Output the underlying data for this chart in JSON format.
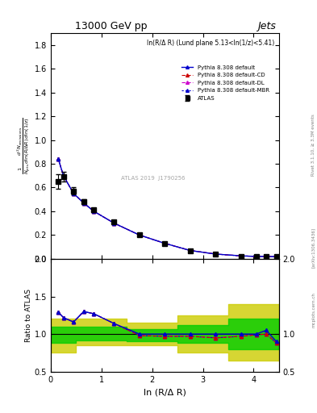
{
  "title": "13000 GeV pp",
  "title_right": "Jets",
  "panel_label": "ln(R/Δ R) (Lund plane 5.13<ln(1/z)<5.41)",
  "xlabel": "ln (R/Δ R)",
  "ylabel": "1/N_jets dln(R/Δ R) dln(1/z)\nd² N_emissions",
  "ylabel_ratio": "Ratio to ATLAS",
  "watermark": "ATLAS 2019  J1790256",
  "right_label": "Rivet 3.1.10, ≥ 3.3M events",
  "arxiv_label": "[arXiv:1306.3436]",
  "mcplots_label": "mcplots.cern.ch",
  "atlas_x": [
    0.15,
    0.25,
    0.45,
    0.65,
    0.85,
    1.25,
    1.75,
    2.25,
    2.75,
    3.25,
    3.75,
    4.05,
    4.25,
    4.45
  ],
  "atlas_y": [
    0.65,
    0.69,
    0.57,
    0.48,
    0.41,
    0.31,
    0.2,
    0.13,
    0.07,
    0.04,
    0.02,
    0.02,
    0.02,
    0.02
  ],
  "atlas_yerr": [
    0.06,
    0.04,
    0.03,
    0.02,
    0.02,
    0.015,
    0.01,
    0.008,
    0.005,
    0.003,
    0.002,
    0.002,
    0.002,
    0.002
  ],
  "pythia_x": [
    0.15,
    0.25,
    0.45,
    0.65,
    0.85,
    1.25,
    1.75,
    2.25,
    2.75,
    3.25,
    3.75,
    4.05,
    4.25,
    4.45
  ],
  "pythia_default_y": [
    0.84,
    0.7,
    0.55,
    0.47,
    0.4,
    0.3,
    0.2,
    0.13,
    0.07,
    0.04,
    0.025,
    0.02,
    0.02,
    0.018
  ],
  "pythia_CD_y": [
    0.84,
    0.7,
    0.55,
    0.47,
    0.4,
    0.3,
    0.2,
    0.13,
    0.07,
    0.04,
    0.025,
    0.02,
    0.02,
    0.018
  ],
  "pythia_DL_y": [
    0.84,
    0.7,
    0.55,
    0.47,
    0.4,
    0.3,
    0.2,
    0.13,
    0.07,
    0.04,
    0.025,
    0.02,
    0.02,
    0.018
  ],
  "pythia_MBR_y": [
    0.84,
    0.7,
    0.55,
    0.47,
    0.4,
    0.3,
    0.2,
    0.13,
    0.07,
    0.04,
    0.025,
    0.02,
    0.02,
    0.018
  ],
  "ratio_default_y": [
    1.29,
    1.22,
    1.16,
    1.3,
    1.27,
    1.14,
    1.0,
    1.0,
    1.0,
    1.0,
    1.0,
    1.0,
    1.05,
    0.9
  ],
  "ratio_CD_y": [
    1.29,
    1.22,
    1.16,
    1.3,
    1.27,
    1.14,
    0.98,
    0.97,
    0.97,
    0.95,
    0.97,
    0.99,
    1.0,
    0.88
  ],
  "ratio_DL_y": [
    1.29,
    1.22,
    1.16,
    1.3,
    1.27,
    1.14,
    0.98,
    0.97,
    0.97,
    0.95,
    0.97,
    0.99,
    1.0,
    0.88
  ],
  "ratio_MBR_y": [
    1.29,
    1.22,
    1.16,
    1.3,
    1.27,
    1.14,
    0.98,
    0.97,
    0.97,
    0.95,
    0.97,
    0.99,
    1.0,
    0.88
  ],
  "yellow_band_x": [
    0.0,
    0.5,
    0.5,
    1.5,
    1.5,
    2.5,
    2.5,
    3.5,
    3.5,
    4.5
  ],
  "yellow_band_lo": [
    0.75,
    0.75,
    0.85,
    0.85,
    0.85,
    0.85,
    0.75,
    0.75,
    0.65,
    0.65
  ],
  "yellow_band_hi": [
    1.2,
    1.2,
    1.2,
    1.2,
    1.15,
    1.15,
    1.25,
    1.25,
    1.4,
    1.4
  ],
  "green_band_x": [
    0.0,
    0.5,
    0.5,
    1.5,
    1.5,
    2.5,
    2.5,
    3.5,
    3.5,
    4.5
  ],
  "green_band_lo": [
    0.88,
    0.88,
    0.92,
    0.92,
    0.9,
    0.9,
    0.88,
    0.88,
    0.8,
    0.8
  ],
  "green_band_hi": [
    1.1,
    1.1,
    1.1,
    1.1,
    1.07,
    1.07,
    1.12,
    1.12,
    1.2,
    1.2
  ],
  "color_default": "#0000cc",
  "color_CD": "#cc0000",
  "color_DL": "#cc00cc",
  "color_MBR": "#0000cc",
  "color_atlas": "#000000",
  "color_green": "#00cc00",
  "color_yellow": "#cccc00",
  "ylim_main": [
    0.0,
    1.9
  ],
  "ylim_ratio": [
    0.5,
    2.0
  ],
  "xlim": [
    0.0,
    4.5
  ]
}
